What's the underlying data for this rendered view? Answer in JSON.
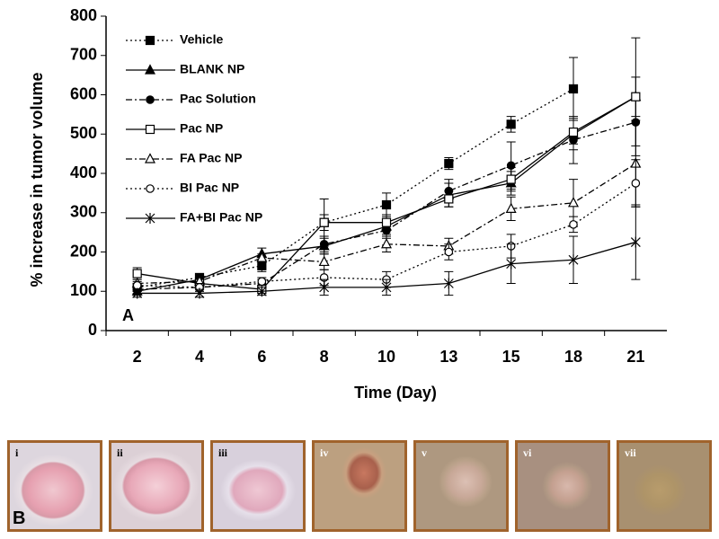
{
  "chart_data": {
    "type": "line",
    "panel_label": "A",
    "x_label": "Time (Day)",
    "y_label": "% increase in tumor volume",
    "categories": [
      "2",
      "4",
      "6",
      "8",
      "10",
      "13",
      "15",
      "18",
      "21"
    ],
    "ylim": [
      0,
      800
    ],
    "yticks": [
      0,
      100,
      200,
      300,
      400,
      500,
      600,
      700,
      800
    ],
    "legend": "top-left",
    "series": [
      {
        "name": "Vehicle",
        "color": "#000000",
        "line_style": "dotted",
        "marker": "square-filled",
        "values": [
          110,
          135,
          165,
          275,
          320,
          425,
          525,
          615,
          null
        ],
        "errors": [
          10,
          10,
          15,
          60,
          30,
          15,
          20,
          80,
          null
        ]
      },
      {
        "name": "BLANK NP",
        "color": "#000000",
        "line_style": "solid",
        "marker": "triangle-filled",
        "values": [
          100,
          130,
          195,
          215,
          265,
          345,
          375,
          500,
          595
        ],
        "errors": [
          10,
          10,
          15,
          20,
          20,
          30,
          30,
          40,
          50
        ]
      },
      {
        "name": "Pac Solution",
        "color": "#000000",
        "line_style": "dash-dot",
        "marker": "circle-filled",
        "values": [
          105,
          110,
          120,
          220,
          255,
          355,
          420,
          485,
          530
        ],
        "errors": [
          10,
          10,
          10,
          20,
          20,
          30,
          60,
          60,
          60
        ]
      },
      {
        "name": "Pac NP",
        "color": "#000000",
        "line_style": "solid",
        "marker": "square-open",
        "values": [
          145,
          120,
          105,
          275,
          275,
          335,
          385,
          505,
          595
        ],
        "errors": [
          15,
          10,
          10,
          20,
          20,
          20,
          30,
          30,
          150
        ]
      },
      {
        "name": "FA Pac NP",
        "color": "#000000",
        "line_style": "dash-dot",
        "marker": "triangle-open",
        "values": [
          120,
          125,
          185,
          175,
          220,
          215,
          310,
          325,
          425
        ],
        "errors": [
          10,
          10,
          10,
          20,
          20,
          20,
          30,
          60,
          110
        ]
      },
      {
        "name": "BI Pac NP",
        "color": "#000000",
        "line_style": "dotted",
        "marker": "circle-open",
        "values": [
          115,
          110,
          125,
          135,
          130,
          200,
          215,
          270,
          375
        ],
        "errors": [
          10,
          10,
          10,
          20,
          20,
          20,
          30,
          20,
          60
        ]
      },
      {
        "name": "FA+BI Pac NP",
        "color": "#000000",
        "line_style": "solid",
        "marker": "asterisk",
        "values": [
          95,
          95,
          100,
          110,
          110,
          120,
          170,
          180,
          225
        ],
        "errors": [
          10,
          10,
          10,
          20,
          20,
          30,
          50,
          60,
          95
        ]
      }
    ]
  },
  "panel_b": {
    "label": "B",
    "images": [
      "i",
      "ii",
      "iii",
      "iv",
      "v",
      "vi",
      "vii"
    ]
  }
}
